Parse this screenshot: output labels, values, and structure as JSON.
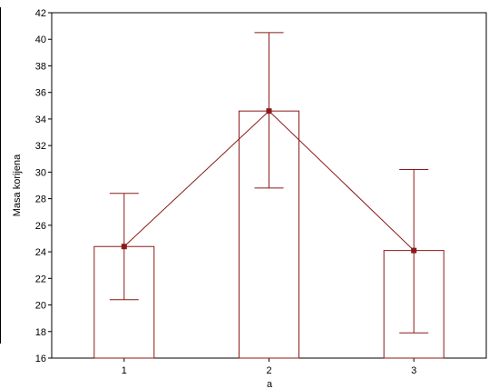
{
  "chart_data": {
    "type": "bar",
    "title": "",
    "xlabel": "a",
    "ylabel": "Masa korijena",
    "categories": [
      "1",
      "2",
      "3"
    ],
    "values": [
      24.4,
      34.6,
      24.1
    ],
    "error_low": [
      20.4,
      28.8,
      17.9
    ],
    "error_high": [
      28.4,
      40.5,
      30.2
    ],
    "overlay": "line connecting means",
    "ylim": [
      16,
      42
    ],
    "yticks": [
      "16",
      "18",
      "20",
      "22",
      "24",
      "26",
      "28",
      "30",
      "32",
      "34",
      "36",
      "38",
      "40",
      "42"
    ],
    "grid": false,
    "legend": "none",
    "colors": {
      "bar_fill": "#ffffff",
      "series": "#8b1a1a",
      "axis": "#000000"
    }
  }
}
